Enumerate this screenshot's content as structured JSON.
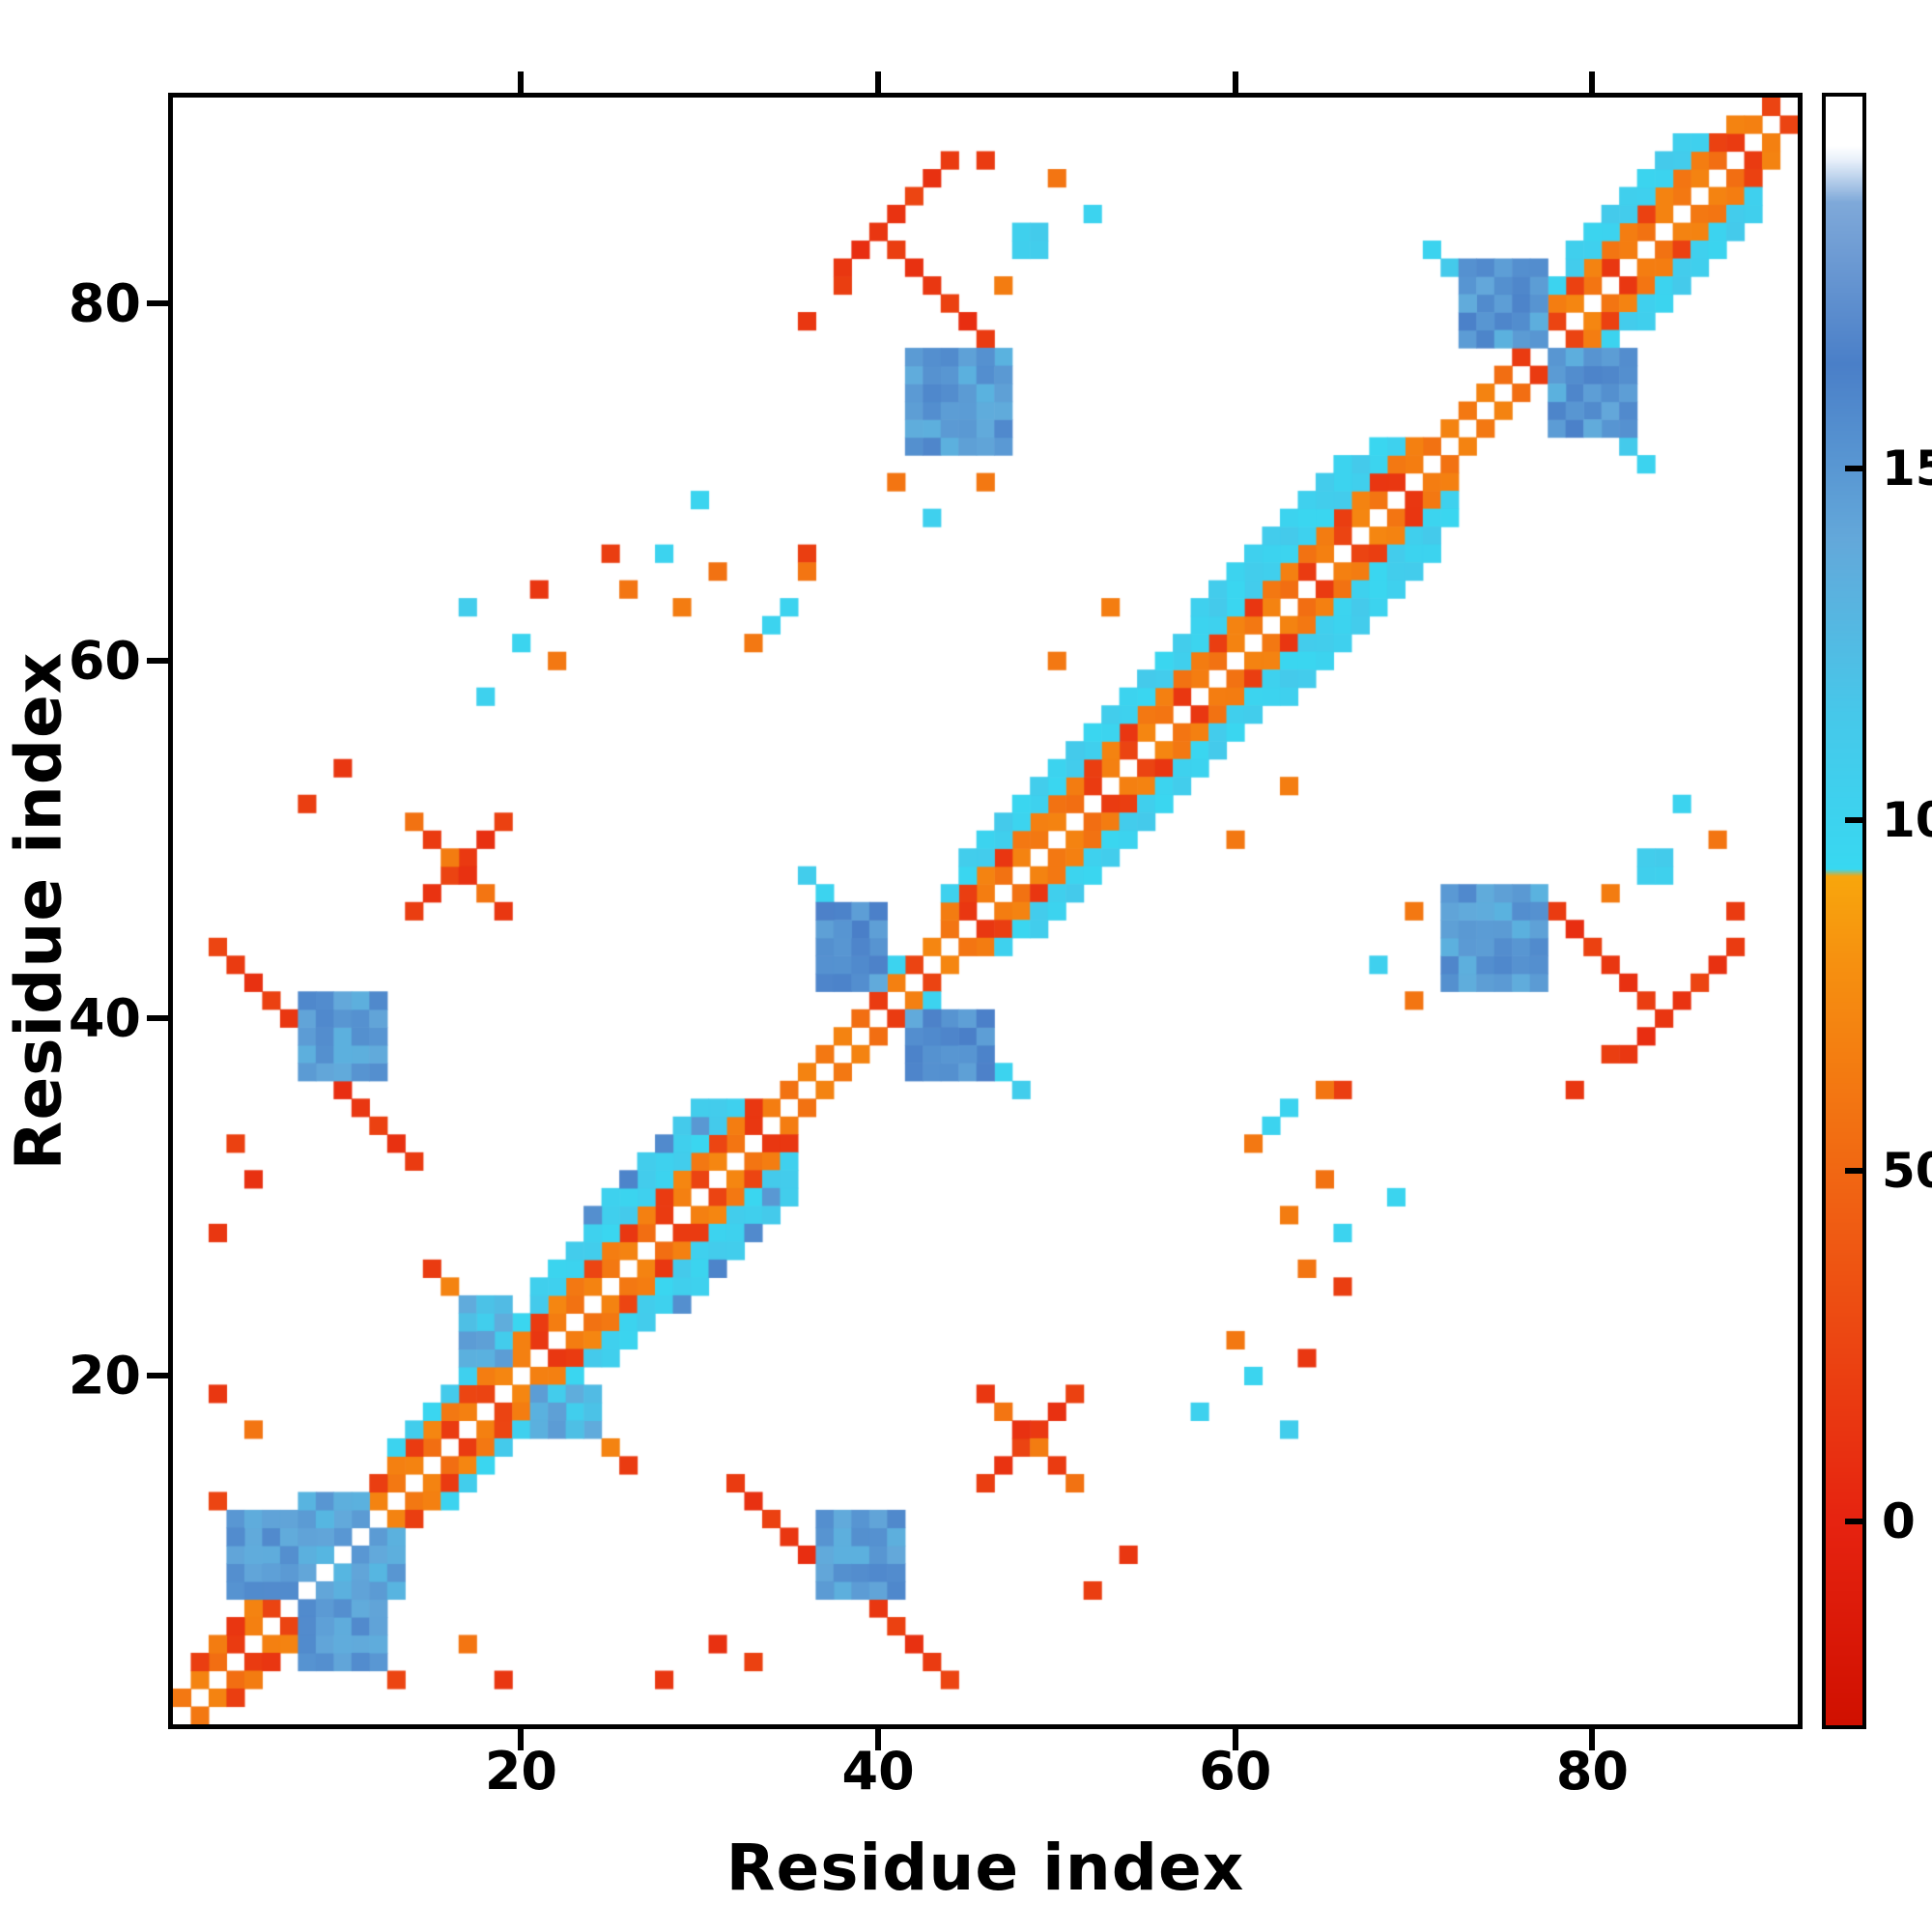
{
  "chart_data": {
    "type": "heatmap",
    "title": "",
    "xlabel": "Residue index",
    "ylabel": "Residue index",
    "x_range": [
      0.5,
      91.5
    ],
    "y_range": [
      0.5,
      91.5
    ],
    "n_residues": 91,
    "x_ticks": [
      20,
      40,
      60,
      80
    ],
    "y_ticks": [
      20,
      40,
      60,
      80
    ],
    "grid": false,
    "symmetric": true,
    "background": "#ffffff",
    "colorbar": {
      "position": "right",
      "ticks": [
        0,
        50,
        100,
        150
      ],
      "vmin": -29,
      "vmax": 203,
      "stops": [
        [
          -29,
          "#d01000"
        ],
        [
          0,
          "#e62310"
        ],
        [
          45,
          "#f06013"
        ],
        [
          80,
          "#f69110"
        ],
        [
          92,
          "#f8a60c"
        ],
        [
          93,
          "#38d8f1"
        ],
        [
          115,
          "#46c8ea"
        ],
        [
          140,
          "#63a8da"
        ],
        [
          165,
          "#4a7fc8"
        ],
        [
          188,
          "#7fa9d9"
        ],
        [
          194,
          "#e8f0fa"
        ],
        [
          196,
          "#ffffff"
        ],
        [
          203,
          "#ffffff"
        ]
      ]
    },
    "cells": {
      "diag_segments": [
        {
          "i0": 1,
          "i1": 90,
          "offset": 1,
          "values": [
            62,
            70,
            55,
            18,
            68,
            24,
            72,
            60,
            15,
            66,
            58,
            70
          ]
        },
        {
          "i0": 2,
          "i1": 12,
          "offset": 2,
          "values": [
            20,
            65,
            14,
            70,
            60
          ]
        },
        {
          "i0": 13,
          "i1": 33,
          "offset": 2,
          "values": [
            68,
            18,
            72,
            62,
            25,
            66,
            15
          ]
        },
        {
          "i0": 44,
          "i1": 70,
          "offset": 2,
          "values": [
            65,
            20,
            70,
            14,
            62,
            68,
            58
          ]
        },
        {
          "i0": 78,
          "i1": 88,
          "offset": 2,
          "values": [
            66,
            22,
            70,
            60
          ]
        },
        {
          "i0": 13,
          "i1": 32,
          "offset": 3,
          "values": [
            100,
            108,
            96,
            112,
            104
          ]
        },
        {
          "i0": 21,
          "i1": 31,
          "offset": 4,
          "values": [
            105,
            98,
            110,
            102
          ]
        },
        {
          "i0": 44,
          "i1": 69,
          "offset": 3,
          "values": [
            102,
            96,
            110,
            105,
            99
          ]
        },
        {
          "i0": 45,
          "i1": 68,
          "offset": 4,
          "values": [
            108,
            100,
            112,
            96
          ]
        },
        {
          "i0": 78,
          "i1": 86,
          "offset": 3,
          "values": [
            100,
            110,
            104
          ]
        },
        {
          "i0": 79,
          "i1": 85,
          "offset": 4,
          "values": [
            106,
            98,
            112
          ]
        },
        {
          "i0": 46,
          "i1": 51,
          "offset": -32,
          "values": [
            20,
            12,
            24,
            16,
            10,
            22
          ]
        },
        {
          "i0": 82,
          "i1": 88,
          "offset": -44,
          "values": [
            15,
            8,
            20,
            12,
            25,
            10,
            18
          ]
        },
        {
          "i0": 58,
          "i1": 66,
          "offset": 5,
          "values": [
            104,
            110,
            100
          ]
        },
        {
          "i0": 24,
          "i1": 30,
          "offset": 5,
          "values": [
            108,
            102,
            112
          ]
        }
      ],
      "anti_runs": [
        {
          "i": 3,
          "j": 13,
          "len": 11,
          "values": [
            22,
            60,
            105,
            70,
            18,
            65,
            100,
            62,
            20,
            70,
            25
          ]
        },
        {
          "i": 15,
          "j": 26,
          "len": 12,
          "values": [
            100,
            65,
            20,
            70,
            105,
            15,
            68,
            100,
            60,
            22,
            70,
            18
          ]
        },
        {
          "i": 36,
          "j": 48,
          "len": 13,
          "values": [
            105,
            98,
            150,
            110,
            100,
            145,
            108,
            100,
            112,
            96,
            104,
            100,
            108
          ]
        },
        {
          "i": 71,
          "j": 83,
          "len": 13,
          "values": [
            100,
            108,
            145,
            100,
            110,
            150,
            105,
            98,
            110,
            100,
            106,
            112,
            100
          ]
        },
        {
          "i": 32,
          "j": 14,
          "len": 7,
          "values": [
            18,
            10,
            22,
            15,
            8,
            20,
            12
          ]
        },
        {
          "i": 46,
          "j": 19,
          "len": 6,
          "values": [
            15,
            60,
            10,
            65,
            18,
            58
          ]
        },
        {
          "i": 77,
          "j": 47,
          "len": 8,
          "values": [
            12,
            18,
            8,
            22,
            15,
            10,
            20,
            14
          ]
        },
        {
          "i": 40,
          "j": 7,
          "len": 5,
          "values": [
            15,
            22,
            10,
            18,
            25
          ]
        }
      ],
      "blobs": [
        {
          "i0": 8,
          "i1": 12,
          "j0": 4,
          "j1": 8,
          "value": 146,
          "jitter": 14
        },
        {
          "i0": 10,
          "i1": 13,
          "j0": 8,
          "j1": 11,
          "value": 140,
          "jitter": 12
        },
        {
          "i0": 21,
          "i1": 24,
          "j0": 17,
          "j1": 19,
          "value": 126,
          "jitter": 22
        },
        {
          "i0": 42,
          "i1": 46,
          "j0": 37,
          "j1": 40,
          "value": 152,
          "jitter": 16
        },
        {
          "i0": 78,
          "i1": 82,
          "j0": 73,
          "j1": 77,
          "value": 148,
          "jitter": 16
        },
        {
          "i0": 37,
          "i1": 41,
          "j0": 8,
          "j1": 12,
          "value": 146,
          "jitter": 14
        },
        {
          "i0": 72,
          "i1": 77,
          "j0": 42,
          "j1": 47,
          "value": 148,
          "jitter": 16
        },
        {
          "i0": 83,
          "i1": 84,
          "j0": 48,
          "j1": 49,
          "value": 105,
          "jitter": 6
        }
      ],
      "dots": [
        [
          28,
          3,
          15
        ],
        [
          31,
          5,
          10
        ],
        [
          33,
          4,
          22
        ],
        [
          58,
          18,
          102
        ],
        [
          61,
          20,
          98
        ],
        [
          63,
          17,
          108
        ],
        [
          60,
          22,
          62
        ],
        [
          64,
          21,
          15
        ],
        [
          64,
          26,
          60
        ],
        [
          66,
          28,
          100
        ],
        [
          63,
          29,
          65
        ],
        [
          66,
          25,
          20
        ],
        [
          61,
          33,
          62
        ],
        [
          63,
          35,
          100
        ],
        [
          65,
          31,
          58
        ],
        [
          66,
          36,
          20
        ],
        [
          70,
          46,
          62
        ],
        [
          68,
          43,
          104
        ],
        [
          70,
          41,
          60
        ],
        [
          81,
          47,
          65
        ],
        [
          87,
          50,
          60
        ],
        [
          88,
          46,
          18
        ],
        [
          85,
          52,
          100
        ],
        [
          60,
          50,
          62
        ],
        [
          63,
          53,
          66
        ],
        [
          31,
          26,
          162
        ],
        [
          33,
          28,
          158
        ],
        [
          29,
          24,
          155
        ],
        [
          34,
          30,
          150
        ],
        [
          69,
          30,
          98
        ],
        [
          79,
          36,
          15
        ],
        [
          81,
          38,
          20
        ],
        [
          52,
          8,
          20
        ],
        [
          54,
          10,
          15
        ],
        [
          36,
          65,
          60
        ],
        [
          34,
          62,
          100
        ],
        [
          17,
          5,
          60
        ],
        [
          19,
          3,
          15
        ]
      ]
    }
  }
}
